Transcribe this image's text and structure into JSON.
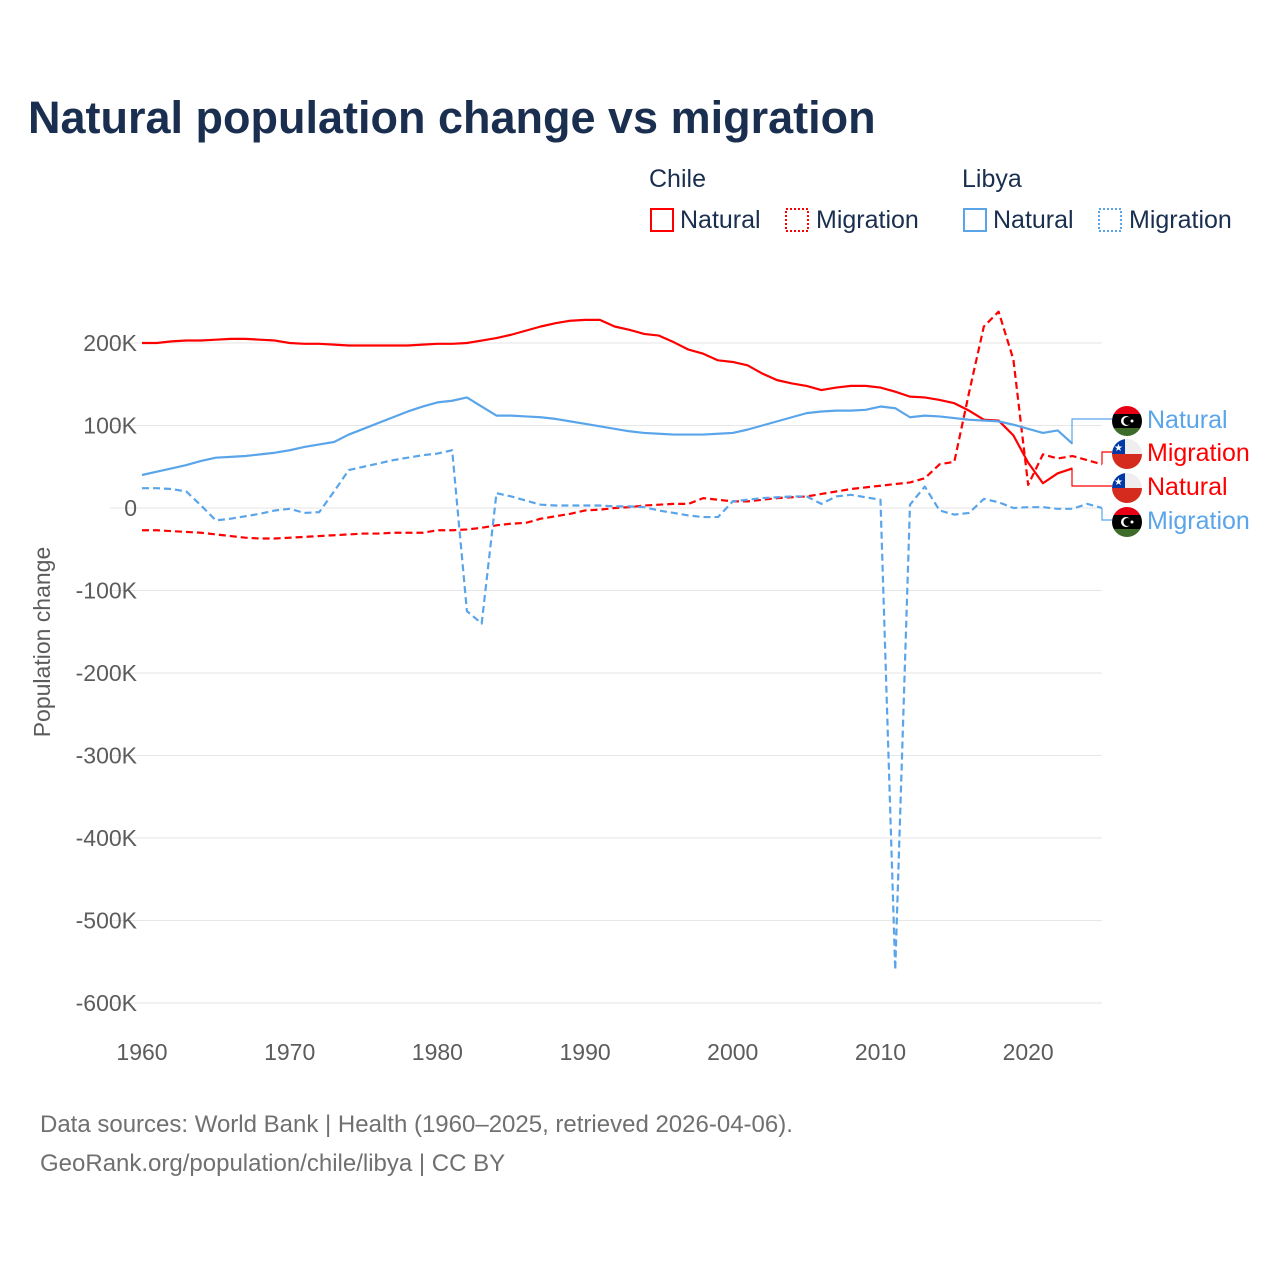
{
  "chart_data": {
    "type": "line",
    "title": "Natural population change vs migration",
    "ylabel": "Population change",
    "xlabel": "",
    "xlim": [
      1960,
      2025
    ],
    "ylim": [
      -600,
      200
    ],
    "y_unit": "thousands",
    "x_ticks": [
      1960,
      1970,
      1980,
      1990,
      2000,
      2010,
      2020
    ],
    "y_ticks": [
      200,
      100,
      0,
      -100,
      -200,
      -300,
      -400,
      -500,
      -600
    ],
    "y_tick_labels": [
      "200K",
      "100K",
      "0",
      "-100K",
      "-200K",
      "-300K",
      "-400K",
      "-500K",
      "-600K"
    ],
    "grid": true,
    "legend": {
      "placement": "top-right",
      "groups": [
        {
          "country": "Chile",
          "items": [
            {
              "label": "Natural",
              "style": "solid"
            },
            {
              "label": "Migration",
              "style": "dashed"
            }
          ]
        },
        {
          "country": "Libya",
          "items": [
            {
              "label": "Natural",
              "style": "solid"
            },
            {
              "label": "Migration",
              "style": "dashed"
            }
          ]
        }
      ]
    },
    "series": [
      {
        "name": "Chile Natural",
        "country": "Chile",
        "label": "Natural",
        "color": "#ff0000",
        "dash": false,
        "start_year": 1960,
        "values": [
          200,
          200,
          202,
          203,
          203,
          204,
          205,
          205,
          204,
          203,
          200,
          199,
          199,
          198,
          197,
          197,
          197,
          197,
          197,
          198,
          199,
          199,
          200,
          203,
          206,
          210,
          215,
          220,
          224,
          227,
          228,
          228,
          220,
          216,
          211,
          209,
          201,
          192,
          187,
          179,
          177,
          173,
          163,
          155,
          151,
          148,
          143,
          146,
          148,
          148,
          146,
          141,
          135,
          134,
          131,
          127,
          118,
          107,
          106,
          88,
          55,
          30,
          42,
          48
        ]
      },
      {
        "name": "Chile Migration",
        "country": "Chile",
        "label": "Migration",
        "color": "#ff0000",
        "dash": true,
        "start_year": 1960,
        "values": [
          -27,
          -27,
          -28,
          -29,
          -30,
          -32,
          -34,
          -36,
          -37,
          -37,
          -36,
          -35,
          -34,
          -33,
          -32,
          -31,
          -31,
          -30,
          -30,
          -30,
          -27,
          -27,
          -26,
          -24,
          -21,
          -19,
          -18,
          -13,
          -10,
          -7,
          -3,
          -2,
          0,
          1,
          3,
          4,
          5,
          5,
          12,
          10,
          8,
          8,
          10,
          12,
          13,
          14,
          17,
          20,
          23,
          25,
          27,
          29,
          31,
          36,
          53,
          56,
          140,
          220,
          238,
          180,
          28,
          65,
          60,
          63,
          58,
          53
        ]
      },
      {
        "name": "Libya Natural",
        "country": "Libya",
        "label": "Natural",
        "color": "#5aa5ea",
        "dash": false,
        "start_year": 1960,
        "values": [
          40,
          44,
          48,
          52,
          57,
          61,
          62,
          63,
          65,
          67,
          70,
          74,
          77,
          80,
          89,
          96,
          103,
          110,
          117,
          123,
          128,
          130,
          134,
          123,
          112,
          112,
          111,
          110,
          108,
          105,
          102,
          99,
          96,
          93,
          91,
          90,
          89,
          89,
          89,
          90,
          91,
          95,
          100,
          105,
          110,
          115,
          117,
          118,
          118,
          119,
          123,
          121,
          110,
          112,
          111,
          109,
          107,
          106,
          105,
          101,
          96,
          91,
          94,
          78
        ]
      },
      {
        "name": "Libya Migration",
        "country": "Libya",
        "label": "Migration",
        "color": "#5aa5ea",
        "dash": true,
        "start_year": 1960,
        "values": [
          24,
          24,
          23,
          20,
          3,
          -15,
          -13,
          -10,
          -7,
          -3,
          -1,
          -6,
          -5,
          20,
          46,
          50,
          54,
          58,
          61,
          64,
          66,
          70,
          -125,
          -140,
          18,
          14,
          9,
          4,
          3,
          3,
          3,
          3,
          2,
          2,
          1,
          -3,
          -6,
          -9,
          -11,
          -11,
          8,
          10,
          12,
          13,
          14,
          14,
          5,
          14,
          16,
          13,
          10,
          -560,
          4,
          26,
          -3,
          -8,
          -6,
          11,
          7,
          0,
          1,
          1,
          -1,
          -1,
          5,
          0
        ]
      }
    ],
    "end_labels": [
      {
        "series": "Libya Natural",
        "text": "Natural",
        "flag": "libya-flag"
      },
      {
        "series": "Chile Migration",
        "text": "Migration",
        "flag": "chile-flag"
      },
      {
        "series": "Chile Natural",
        "text": "Natural",
        "flag": "chile-flag"
      },
      {
        "series": "Libya Migration",
        "text": "Migration",
        "flag": "libya-flag"
      }
    ]
  },
  "footer": {
    "line1": "Data sources: World Bank | Health (1960–2025, retrieved 2026-04-06).",
    "line2": "GeoRank.org/population/chile/libya | CC BY"
  },
  "colors": {
    "title": "#1a2e4f",
    "axis_text": "#5c5c5c",
    "grid": "#e6e6e6",
    "chile": "#ff0000",
    "libya": "#5aa5ea"
  }
}
